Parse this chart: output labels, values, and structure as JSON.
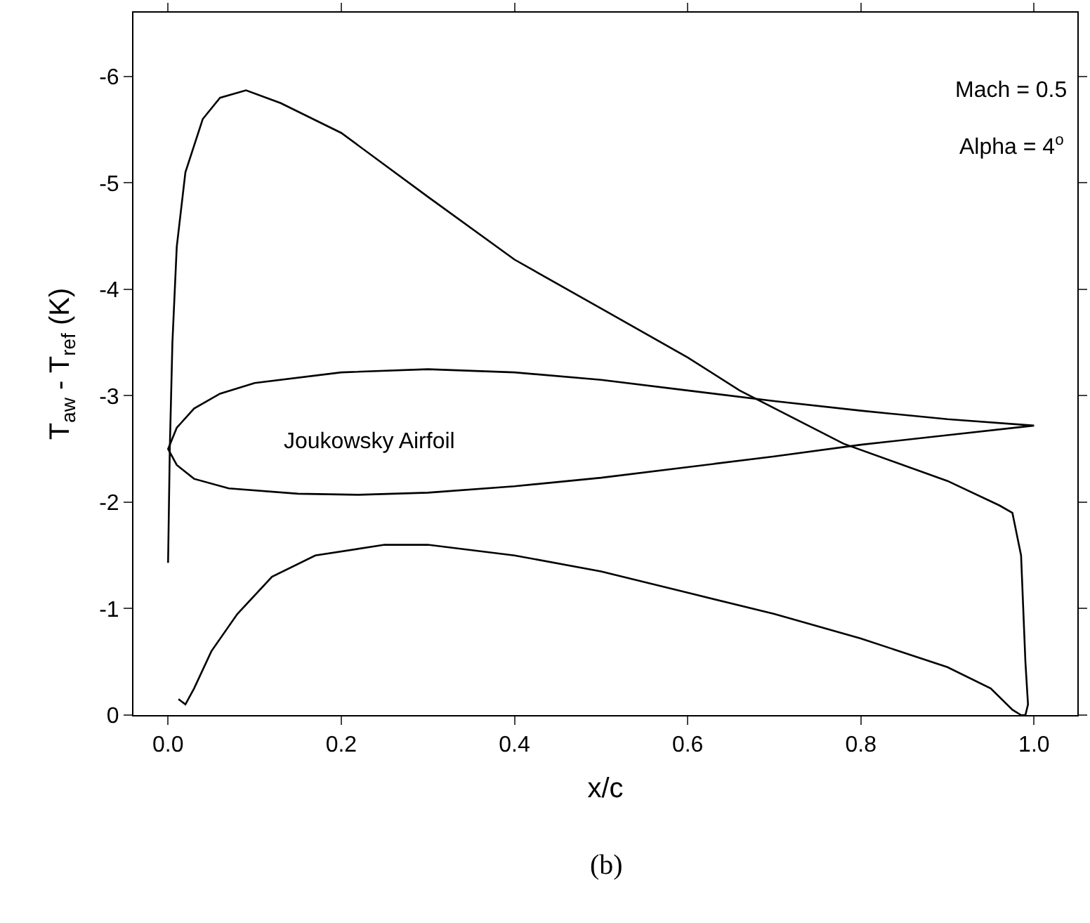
{
  "chart_data": {
    "type": "line",
    "xlabel": "x/c",
    "ylabel": "T$_{aw}$ - T$_{ref}$ (K)",
    "xlim": [
      -0.04,
      1.05
    ],
    "ylim": [
      0,
      -6.6
    ],
    "xticks": [
      {
        "value": 0,
        "label": "0.0"
      },
      0.2,
      0.4,
      0.6,
      0.8,
      {
        "value": 1,
        "label": "1.0"
      }
    ],
    "yticks": [
      0,
      -1,
      -2,
      -3,
      -4,
      -5,
      -6
    ],
    "marker": "none",
    "line_style": "solid",
    "series": [
      {
        "color": "#000000",
        "x": [
          0.0,
          0.002,
          0.005,
          0.01,
          0.02,
          0.04,
          0.06,
          0.09,
          0.13,
          0.2,
          0.3,
          0.4,
          0.5,
          0.6,
          0.66,
          0.78,
          0.9,
          0.96,
          0.975,
          0.985,
          0.99,
          0.993,
          0.99,
          0.985,
          0.975,
          0.95,
          0.9,
          0.8,
          0.7,
          0.6,
          0.5,
          0.4,
          0.3,
          0.25,
          0.17,
          0.12,
          0.08,
          0.05,
          0.03,
          0.02,
          0.012
        ],
        "values": [
          -1.43,
          -2.5,
          -3.5,
          -4.4,
          -5.1,
          -5.6,
          -5.8,
          -5.87,
          -5.75,
          -5.47,
          -4.87,
          -4.28,
          -3.82,
          -3.36,
          -3.05,
          -2.55,
          -2.2,
          -1.97,
          -1.9,
          -1.5,
          -0.5,
          -0.1,
          0.0,
          0.0,
          -0.05,
          -0.25,
          -0.45,
          -0.72,
          -0.95,
          -1.15,
          -1.35,
          -1.5,
          -1.6,
          -1.6,
          -1.5,
          -1.3,
          -0.95,
          -0.6,
          -0.25,
          -0.1,
          -0.15
        ]
      }
    ],
    "annotations": [
      "Joukowsky Airfoil",
      "Mach = 0.5",
      "Alpha = 4$^{o}$",
      "(b)"
    ]
  }
}
